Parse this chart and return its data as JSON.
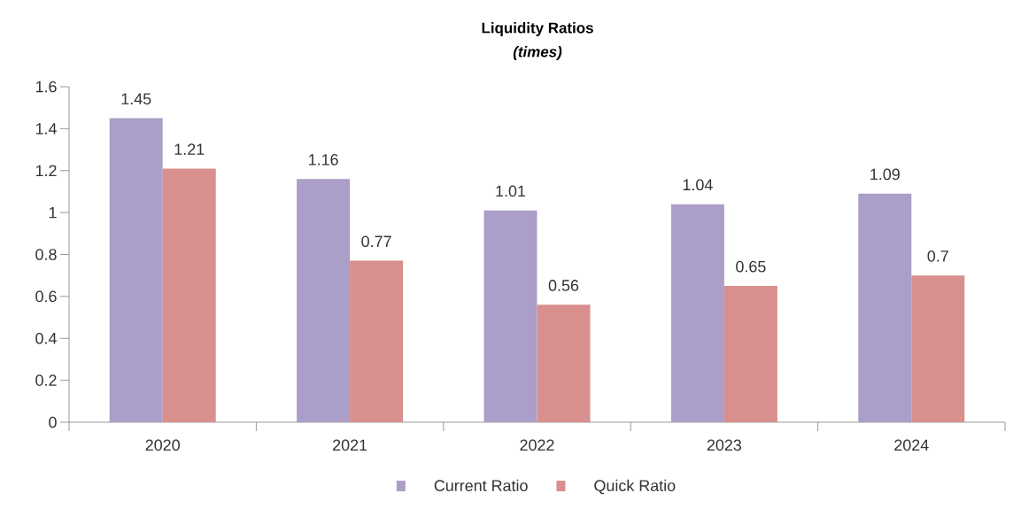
{
  "chart_data": {
    "type": "bar",
    "title": "Liquidity Ratios",
    "subtitle": "(times)",
    "categories": [
      "2020",
      "2021",
      "2022",
      "2023",
      "2024"
    ],
    "series": [
      {
        "name": "Current Ratio",
        "color": "#ab9ec8",
        "values": [
          1.45,
          1.16,
          1.01,
          1.04,
          1.09
        ]
      },
      {
        "name": "Quick Ratio",
        "color": "#d88f8d",
        "values": [
          1.21,
          0.77,
          0.56,
          0.65,
          0.7
        ]
      }
    ],
    "ylim": [
      0,
      1.6
    ],
    "yticks": [
      0,
      0.2,
      0.4,
      0.6,
      0.8,
      1,
      1.2,
      1.4,
      1.6
    ],
    "data_labels": true,
    "grid": false,
    "legend": "bottom"
  }
}
